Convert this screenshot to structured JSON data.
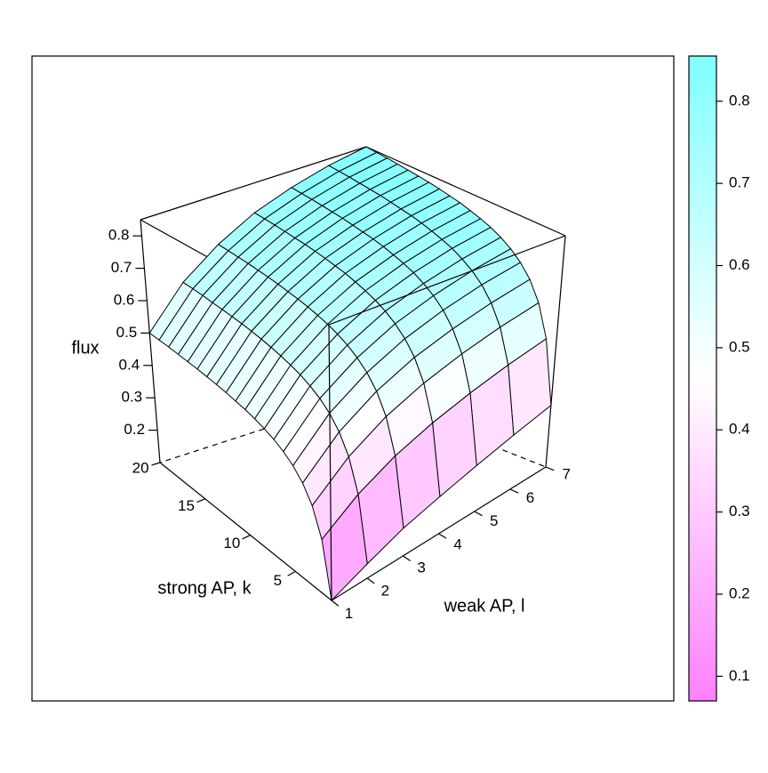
{
  "chart_data": {
    "type": "surface",
    "zlabel": "flux",
    "klabel": "strong AP, k",
    "llabel": "weak AP, l",
    "k": [
      1,
      2,
      3,
      4,
      5,
      6,
      7,
      8,
      9,
      10,
      11,
      12,
      13,
      14,
      15,
      16,
      17,
      18,
      19,
      20
    ],
    "l": [
      1,
      2,
      3,
      4,
      5,
      6,
      7
    ],
    "z": [
      [
        0.1,
        0.247,
        0.321,
        0.365,
        0.395,
        0.416,
        0.432,
        0.444,
        0.454,
        0.462,
        0.468,
        0.474,
        0.479,
        0.483,
        0.487,
        0.49,
        0.493,
        0.496,
        0.498,
        0.5
      ],
      [
        0.14,
        0.317,
        0.405,
        0.458,
        0.494,
        0.519,
        0.538,
        0.553,
        0.564,
        0.574,
        0.582,
        0.589,
        0.595,
        0.6,
        0.604,
        0.608,
        0.611,
        0.615,
        0.618,
        0.62
      ],
      [
        0.18,
        0.371,
        0.468,
        0.525,
        0.563,
        0.59,
        0.611,
        0.627,
        0.64,
        0.65,
        0.659,
        0.666,
        0.672,
        0.678,
        0.683,
        0.687,
        0.691,
        0.694,
        0.697,
        0.7
      ],
      [
        0.21,
        0.412,
        0.514,
        0.575,
        0.615,
        0.644,
        0.666,
        0.683,
        0.696,
        0.707,
        0.717,
        0.724,
        0.731,
        0.737,
        0.742,
        0.746,
        0.75,
        0.754,
        0.757,
        0.76
      ],
      [
        0.24,
        0.446,
        0.55,
        0.611,
        0.653,
        0.682,
        0.704,
        0.722,
        0.735,
        0.746,
        0.756,
        0.764,
        0.77,
        0.776,
        0.782,
        0.786,
        0.79,
        0.794,
        0.797,
        0.8
      ],
      [
        0.27,
        0.476,
        0.58,
        0.641,
        0.683,
        0.712,
        0.734,
        0.752,
        0.765,
        0.776,
        0.786,
        0.794,
        0.8,
        0.806,
        0.812,
        0.816,
        0.82,
        0.824,
        0.827,
        0.83
      ],
      [
        0.3,
        0.502,
        0.604,
        0.665,
        0.705,
        0.734,
        0.756,
        0.773,
        0.786,
        0.797,
        0.807,
        0.814,
        0.821,
        0.827,
        0.832,
        0.836,
        0.84,
        0.844,
        0.847,
        0.85
      ]
    ],
    "klim": [
      1,
      20
    ],
    "llim": [
      1,
      7
    ],
    "zlim": [
      0.1,
      0.85
    ],
    "kticks": [
      5,
      10,
      15,
      20
    ],
    "lticks": [
      1,
      2,
      3,
      4,
      5,
      6,
      7
    ],
    "zticks": [
      0.2,
      0.3,
      0.4,
      0.5,
      0.6,
      0.7,
      0.8
    ],
    "colorkey_lim": [
      0.07,
      0.855
    ],
    "colorkey_ticks": [
      0.1,
      0.2,
      0.3,
      0.4,
      0.5,
      0.6,
      0.7,
      0.8
    ],
    "colors": [
      "#ff80ff",
      "#ffffff",
      "#80ffff"
    ]
  }
}
